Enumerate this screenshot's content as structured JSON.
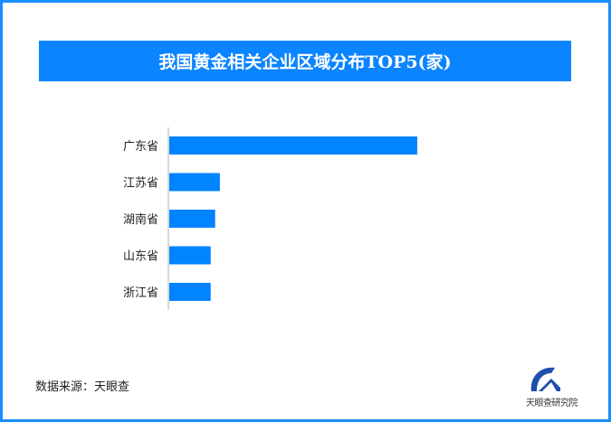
{
  "chart_data": {
    "type": "bar",
    "orientation": "horizontal",
    "title": "我国黄金相关企业区域分布TOP5(家)",
    "categories": [
      "广东省",
      "江苏省",
      "湖南省",
      "山东省",
      "浙江省"
    ],
    "values": [
      100,
      20.4,
      18.5,
      16.7,
      16.7
    ],
    "xlim": [
      0,
      100
    ],
    "value_note_visible": false,
    "grid": false,
    "bar_color": "#0084ff"
  },
  "source": "数据来源：天眼查",
  "logo": {
    "text": "天眼查研究院",
    "color": "#1e4fae"
  },
  "frame_color": "#1a8cff",
  "title_bg": "#0a84ff"
}
